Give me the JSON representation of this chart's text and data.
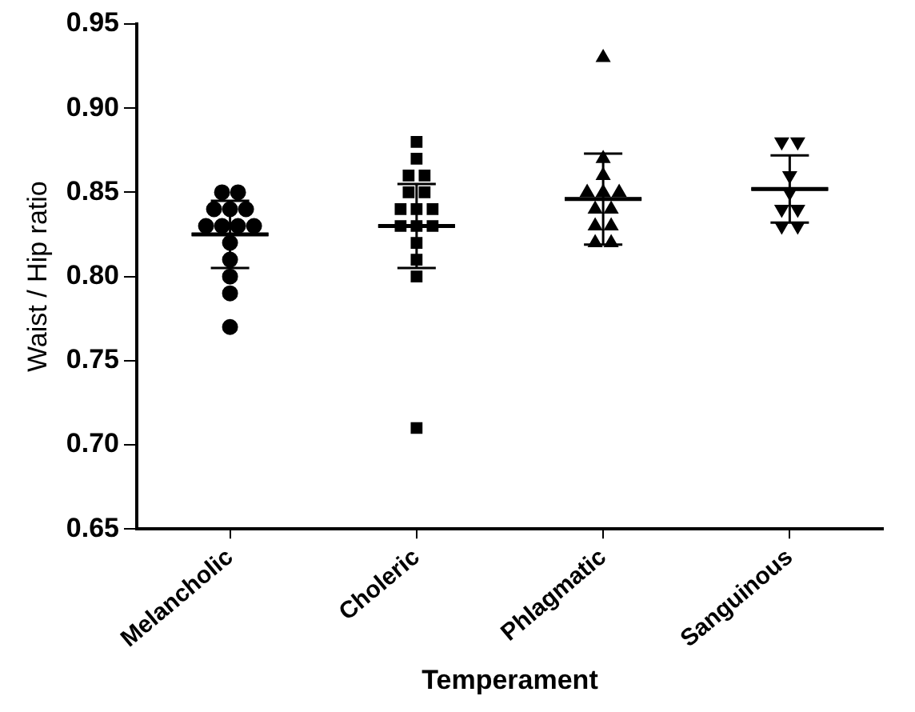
{
  "chart_data": {
    "type": "scatter",
    "xlabel": "Temperament",
    "ylabel": "Waist / Hip ratio",
    "categories": [
      "Melancholic",
      "Choleric",
      "Phlagmatic",
      "Sanguinous"
    ],
    "ylim": [
      0.65,
      0.95
    ],
    "yticks": [
      {
        "value": 0.65,
        "label": "0.65"
      },
      {
        "value": 0.7,
        "label": "0.70"
      },
      {
        "value": 0.75,
        "label": "0.75"
      },
      {
        "value": 0.8,
        "label": "0.80"
      },
      {
        "value": 0.85,
        "label": "0.85"
      },
      {
        "value": 0.9,
        "label": "0.90"
      },
      {
        "value": 0.95,
        "label": "0.95"
      }
    ],
    "grid": false,
    "legend": false,
    "series": [
      {
        "type": "scatter",
        "marker": "circle",
        "color": "#000000",
        "x": [
          "Melancholic",
          "Melancholic",
          "Melancholic",
          "Melancholic",
          "Melancholic",
          "Melancholic",
          "Melancholic",
          "Melancholic",
          "Melancholic",
          "Melancholic",
          "Melancholic",
          "Melancholic",
          "Melancholic",
          "Melancholic"
        ],
        "values": [
          0.85,
          0.85,
          0.84,
          0.84,
          0.84,
          0.83,
          0.83,
          0.83,
          0.83,
          0.82,
          0.81,
          0.8,
          0.79,
          0.77
        ]
      },
      {
        "type": "scatter",
        "marker": "square",
        "color": "#000000",
        "x": [
          "Choleric",
          "Choleric",
          "Choleric",
          "Choleric",
          "Choleric",
          "Choleric",
          "Choleric",
          "Choleric",
          "Choleric",
          "Choleric",
          "Choleric",
          "Choleric",
          "Choleric",
          "Choleric",
          "Choleric",
          "Choleric"
        ],
        "values": [
          0.88,
          0.87,
          0.86,
          0.86,
          0.85,
          0.85,
          0.84,
          0.84,
          0.84,
          0.83,
          0.83,
          0.83,
          0.82,
          0.81,
          0.8,
          0.71
        ]
      },
      {
        "type": "scatter",
        "marker": "triangle",
        "color": "#000000",
        "x": [
          "Phlagmatic",
          "Phlagmatic",
          "Phlagmatic",
          "Phlagmatic",
          "Phlagmatic",
          "Phlagmatic",
          "Phlagmatic",
          "Phlagmatic",
          "Phlagmatic",
          "Phlagmatic",
          "Phlagmatic",
          "Phlagmatic"
        ],
        "values": [
          0.93,
          0.87,
          0.86,
          0.85,
          0.85,
          0.85,
          0.84,
          0.84,
          0.83,
          0.83,
          0.82,
          0.82
        ]
      },
      {
        "type": "scatter",
        "marker": "triangle-down",
        "color": "#000000",
        "x": [
          "Sanguinous",
          "Sanguinous",
          "Sanguinous",
          "Sanguinous",
          "Sanguinous",
          "Sanguinous",
          "Sanguinous",
          "Sanguinous"
        ],
        "values": [
          0.88,
          0.88,
          0.86,
          0.85,
          0.84,
          0.84,
          0.83,
          0.83
        ]
      },
      {
        "type": "box",
        "color": "#000000",
        "boxes": [
          {
            "low": 0.805,
            "q1": 0.825,
            "median": 0.825,
            "q3": 0.825,
            "high": 0.845
          },
          {
            "low": 0.805,
            "q1": 0.83,
            "median": 0.83,
            "q3": 0.83,
            "high": 0.855
          },
          {
            "low": 0.819,
            "q1": 0.846,
            "median": 0.846,
            "q3": 0.846,
            "high": 0.873
          },
          {
            "low": 0.832,
            "q1": 0.852,
            "median": 0.852,
            "q3": 0.852,
            "high": 0.872
          }
        ]
      }
    ]
  }
}
